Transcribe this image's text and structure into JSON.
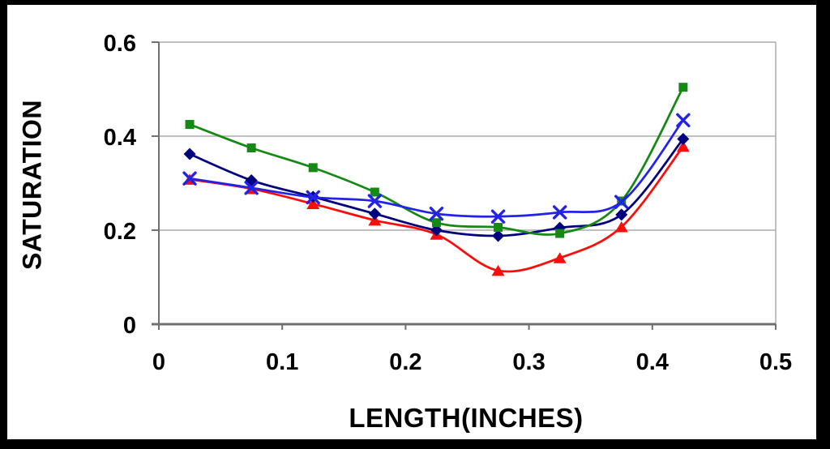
{
  "chart_data": {
    "type": "scatter",
    "line_style": "smooth",
    "title": "",
    "xlabel": "LENGTH(INCHES)",
    "ylabel": "SATURATION",
    "xlim": [
      0,
      0.5
    ],
    "ylim": [
      0,
      0.6
    ],
    "xticks": {
      "values": [
        0,
        0.1,
        0.2,
        0.3,
        0.4,
        0.5
      ],
      "labels": [
        "0",
        "0.1",
        "0.2",
        "0.3",
        "0.4",
        "0.5"
      ]
    },
    "yticks": {
      "values": [
        0,
        0.2,
        0.4,
        0.6
      ],
      "labels": [
        "0",
        "0.2",
        "0.4",
        "0.6"
      ]
    },
    "grid": "horizontal-gridlines-at-0.2-and-0.4-plus-top-and-right-frame",
    "legend": "none",
    "x": [
      0.025,
      0.075,
      0.125,
      0.175,
      0.225,
      0.275,
      0.325,
      0.375,
      0.425
    ],
    "series": [
      {
        "name": "red-triangles",
        "marker": "triangle",
        "color": "#FC0D0C",
        "values": [
          0.308,
          0.288,
          0.256,
          0.221,
          0.191,
          0.114,
          0.141,
          0.207,
          0.378
        ]
      },
      {
        "name": "navy-diamonds",
        "marker": "diamond",
        "color": "#00007E",
        "values": [
          0.362,
          0.306,
          0.271,
          0.235,
          0.2,
          0.188,
          0.205,
          0.233,
          0.394
        ]
      },
      {
        "name": "green-squares",
        "marker": "square",
        "color": "#148A14",
        "values": [
          0.425,
          0.375,
          0.333,
          0.281,
          0.216,
          0.206,
          0.193,
          0.262,
          0.504
        ]
      },
      {
        "name": "blue-x",
        "marker": "x",
        "color": "#2323E8",
        "values": [
          0.31,
          0.29,
          0.27,
          0.262,
          0.235,
          0.229,
          0.238,
          0.26,
          0.434
        ]
      }
    ],
    "style": {
      "background": "#000000",
      "canvas": "#FFFFFF",
      "grid_color": "#ABABAB",
      "axis_color": "#707070",
      "text_color": "#000000",
      "line_width": 2.75,
      "tick_font_size": 29
    }
  }
}
